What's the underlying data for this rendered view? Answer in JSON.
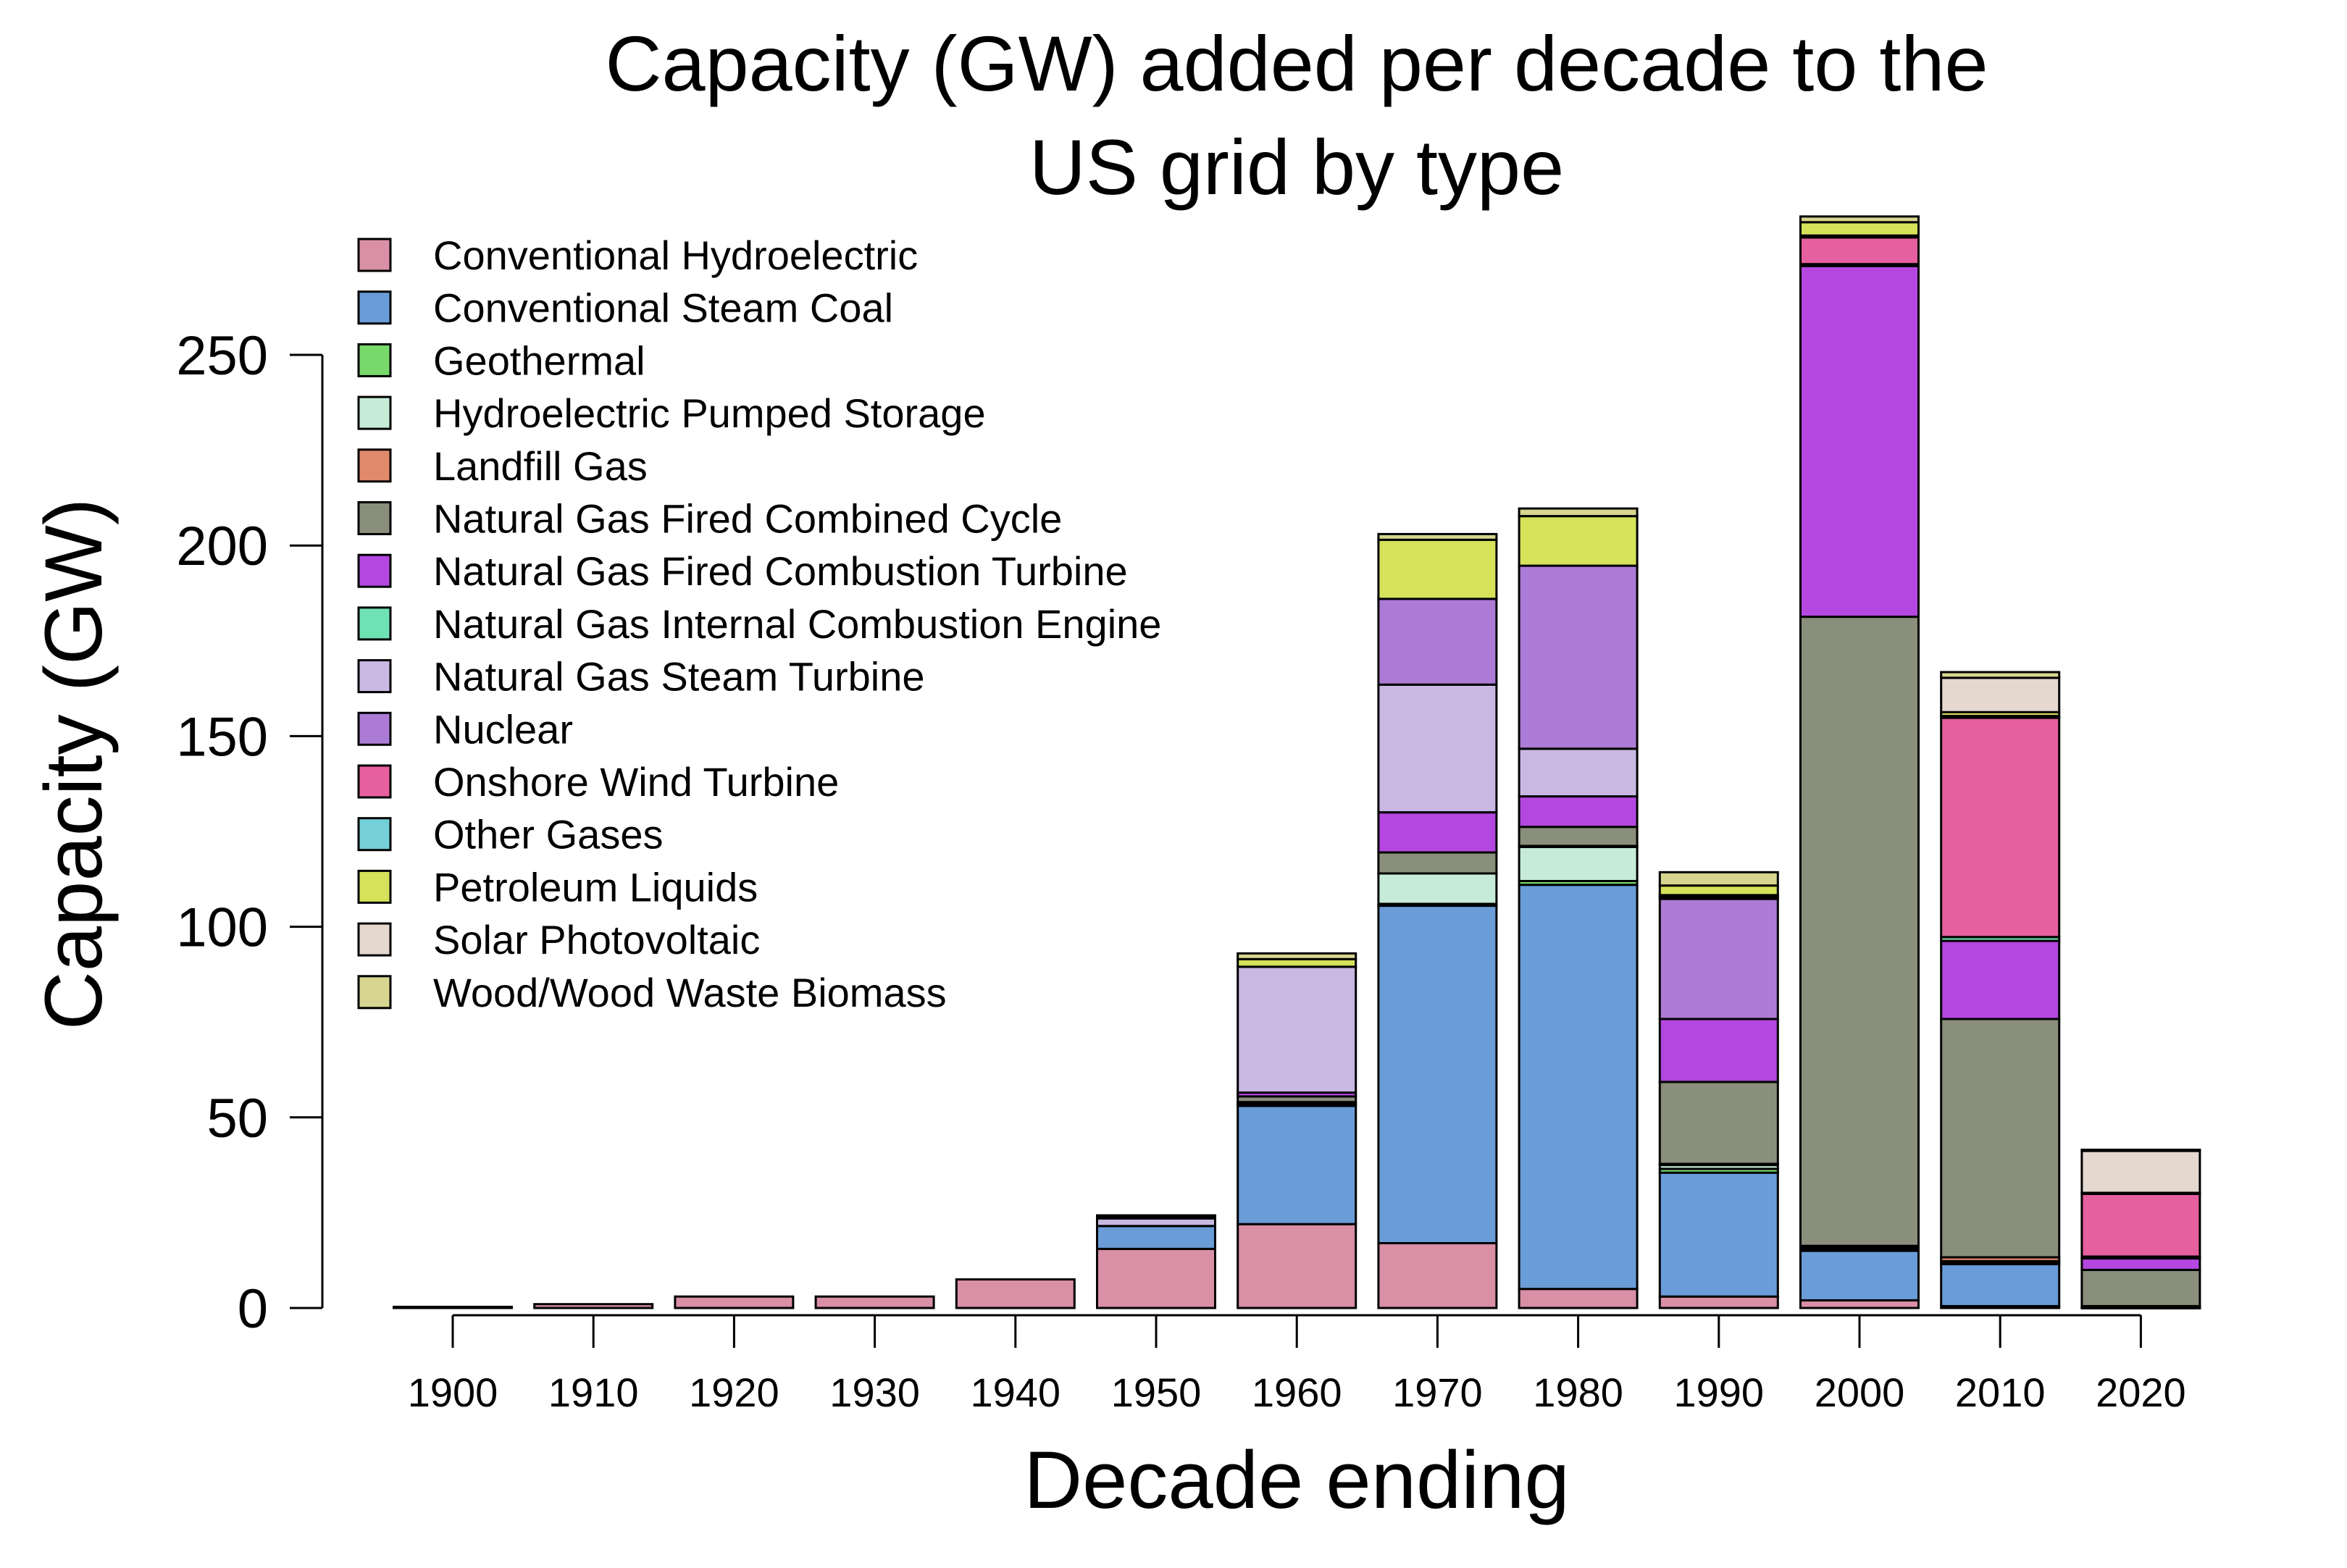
{
  "chart_data": {
    "type": "bar",
    "stacked": true,
    "title_line1": "Capacity (GW) added per decade to the",
    "title_line2": "US grid by type",
    "xlabel": "Decade ending",
    "ylabel": "Capacity (GW)",
    "ylim": [
      0,
      285
    ],
    "yticks": [
      0,
      50,
      100,
      150,
      200,
      250
    ],
    "ytick_labels": [
      "0",
      "50",
      "100",
      "150",
      "200",
      "250"
    ],
    "grid": false,
    "legend_position": "top-left",
    "categories": [
      "1900",
      "1910",
      "1920",
      "1930",
      "1940",
      "1950",
      "1960",
      "1970",
      "1980",
      "1990",
      "2000",
      "2010",
      "2020"
    ],
    "series": [
      {
        "name": "Conventional Hydroelectric",
        "color": "#d98fa5",
        "values": [
          0.3,
          1,
          3,
          3,
          7.5,
          15.5,
          22,
          17,
          5,
          3,
          2,
          0.5,
          0
        ]
      },
      {
        "name": "Conventional Steam Coal",
        "color": "#6a9cd8",
        "values": [
          0,
          0,
          0,
          0,
          0,
          6,
          31,
          88.5,
          106,
          32.5,
          13,
          11,
          0
        ]
      },
      {
        "name": "Geothermal",
        "color": "#77d96a",
        "values": [
          0,
          0,
          0,
          0,
          0,
          0,
          0.5,
          0.5,
          1,
          1,
          0.3,
          0.5,
          0.2
        ]
      },
      {
        "name": "Hydroelectric Pumped Storage",
        "color": "#c6ecd7",
        "values": [
          0,
          0,
          0,
          0,
          0,
          0,
          0.5,
          8,
          9,
          1,
          0.5,
          0.3,
          0
        ]
      },
      {
        "name": "Landfill Gas",
        "color": "#e1896b",
        "values": [
          0,
          0,
          0,
          0,
          0,
          0,
          0,
          0,
          0.2,
          0.3,
          0.5,
          1,
          0.3
        ]
      },
      {
        "name": "Natural Gas Fired Combined Cycle",
        "color": "#8a8f7b",
        "values": [
          0,
          0,
          0,
          0,
          0,
          0,
          1.5,
          5.5,
          5,
          21.5,
          165,
          62.5,
          9.5
        ]
      },
      {
        "name": "Natural Gas Fired Combustion Turbine",
        "color": "#b447e0",
        "values": [
          0,
          0,
          0,
          0,
          0,
          0,
          1,
          10.5,
          8,
          16.5,
          92,
          20.5,
          3
        ]
      },
      {
        "name": "Natural Gas Internal Combustion Engine",
        "color": "#6fe2b4",
        "values": [
          0,
          0,
          0,
          0,
          0,
          0,
          0,
          0,
          0,
          0,
          0.5,
          1,
          0.5
        ]
      },
      {
        "name": "Natural Gas Steam Turbine",
        "color": "#c8b8e2",
        "values": [
          0,
          0,
          0,
          0,
          0,
          2,
          33,
          33.5,
          12.5,
          0,
          0,
          0,
          0
        ]
      },
      {
        "name": "Nuclear",
        "color": "#ac7bd6",
        "values": [
          0,
          0,
          0,
          0,
          0,
          0,
          0,
          22.5,
          48,
          31.5,
          0,
          0,
          0
        ]
      },
      {
        "name": "Onshore Wind Turbine",
        "color": "#e65f9e",
        "values": [
          0,
          0,
          0,
          0,
          0,
          0,
          0,
          0,
          0,
          0.5,
          7,
          57.5,
          16.5
        ]
      },
      {
        "name": "Other Gases",
        "color": "#74cfd8",
        "values": [
          0,
          0,
          0,
          0,
          0,
          0,
          0,
          0,
          0,
          0.5,
          0.5,
          0.5,
          0
        ]
      },
      {
        "name": "Petroleum Liquids",
        "color": "#d6e25a",
        "values": [
          0,
          0,
          0,
          0,
          0,
          0.5,
          2,
          15.5,
          13,
          2.5,
          3.5,
          1,
          0.2
        ]
      },
      {
        "name": "Solar Photovoltaic",
        "color": "#e4d8cf",
        "values": [
          0,
          0,
          0,
          0,
          0,
          0,
          0,
          0,
          0,
          0,
          0,
          9,
          11
        ]
      },
      {
        "name": "Wood/Wood Waste Biomass",
        "color": "#d7d58f",
        "values": [
          0,
          0,
          0,
          0,
          0,
          0.3,
          1.5,
          1.5,
          2,
          3.5,
          1.5,
          1.5,
          0.3
        ]
      }
    ]
  }
}
